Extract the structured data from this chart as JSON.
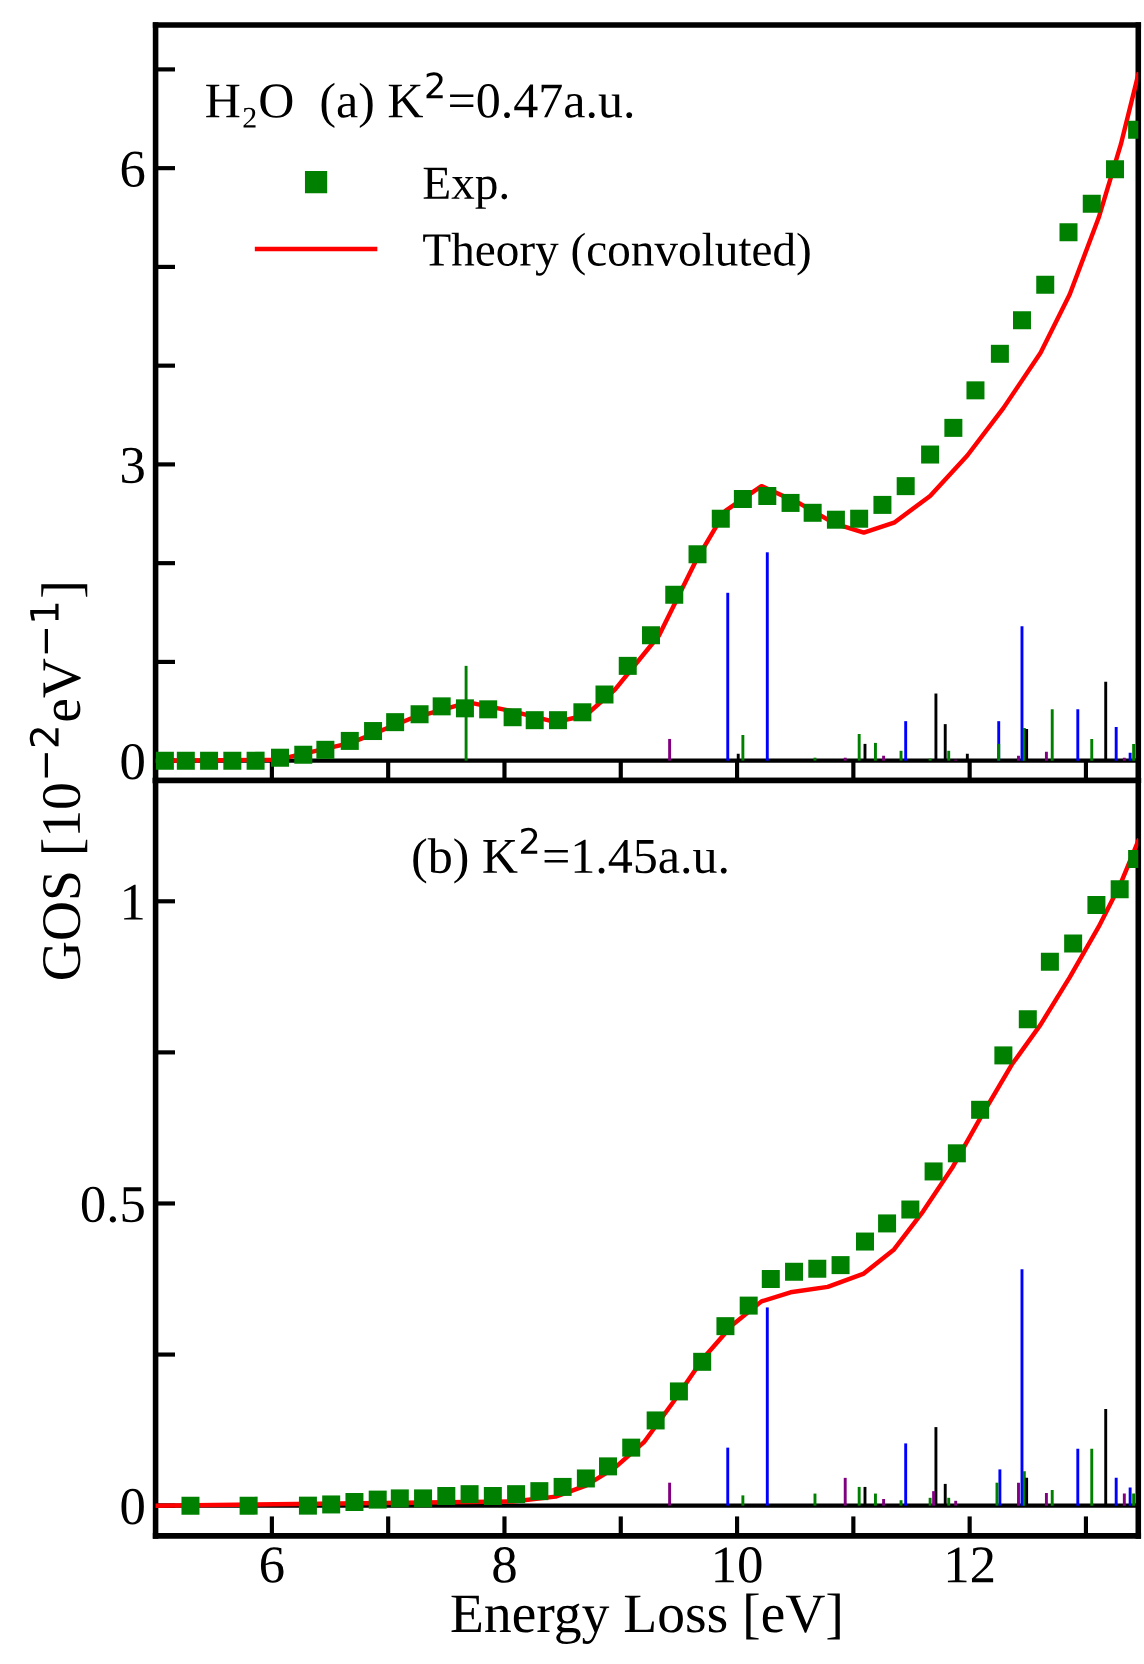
{
  "chart_data": [
    {
      "type": "scatter",
      "ylabel": "GOS [10$^{−2}$eV$^{−1}$]",
      "annotations": [
        "H₂O  (a) K$^{2}$=0.47a.u."
      ],
      "legend": "top left",
      "tick_labels": "y",
      "xlim": [
        5,
        13.45
      ],
      "ylim": [
        -0.2,
        7.45
      ],
      "xticks": [
        6,
        {
          "value": 7,
          "label": null
        },
        8,
        {
          "value": 9,
          "label": null
        },
        10,
        {
          "value": 11,
          "label": null
        },
        12,
        {
          "value": 13,
          "label": null
        }
      ],
      "yticks": [
        0,
        {
          "value": 1,
          "label": null
        },
        {
          "value": 2,
          "label": null
        },
        3,
        {
          "value": 4,
          "label": null
        },
        {
          "value": 5,
          "label": null
        },
        6,
        {
          "value": 7,
          "label": null
        }
      ],
      "series": [
        {
          "type": "bar",
          "color": "#0000ff",
          "x": [
            9.92,
            10.26,
            11.45,
            12.25,
            12.45,
            12.93,
            13.26,
            13.38
          ],
          "values": [
            1.7,
            2.11,
            0.4,
            0.4,
            1.36,
            0.52,
            0.34,
            0.08
          ]
        },
        {
          "type": "bar",
          "color": "#008000",
          "x": [
            7.67,
            10.05,
            10.67,
            11.05,
            11.19,
            11.41,
            11.66,
            11.82,
            12.25,
            12.47,
            12.71,
            13.05,
            13.41
          ],
          "values": [
            0.96,
            0.26,
            0.03,
            0.27,
            0.18,
            0.1,
            0.02,
            0.1,
            0.17,
            0.33,
            0.52,
            0.22,
            0.17
          ]
        },
        {
          "type": "bar",
          "color": "#000000",
          "x": [
            10.01,
            11.1,
            11.71,
            11.79,
            11.98,
            12.49,
            13.17
          ],
          "values": [
            0.07,
            0.17,
            0.68,
            0.37,
            0.07,
            0.32,
            0.8
          ]
        },
        {
          "type": "bar",
          "color": "#800080",
          "x": [
            9.42,
            10.93,
            11.26,
            11.88,
            12.42,
            12.66,
            13.33
          ],
          "values": [
            0.22,
            0.03,
            0.05,
            0.01,
            0.05,
            0.09,
            0.03
          ]
        },
        {
          "type": "line",
          "name": "Theory (convoluted)",
          "color": "#ff0000",
          "line_style": "solid",
          "x": [
            5,
            6.05,
            6.68,
            7.18,
            7.69,
            8.07,
            8.44,
            8.7,
            8.95,
            9.33,
            9.64,
            9.9,
            10.21,
            10.53,
            10.84,
            11.09,
            11.35,
            11.66,
            11.98,
            12.29,
            12.61,
            12.86,
            13.11,
            13.3,
            13.45
          ],
          "values": [
            0,
            0.01,
            0.18,
            0.42,
            0.59,
            0.5,
            0.39,
            0.46,
            0.72,
            1.27,
            2.01,
            2.53,
            2.78,
            2.61,
            2.4,
            2.31,
            2.41,
            2.68,
            3.09,
            3.57,
            4.13,
            4.72,
            5.5,
            6.24,
            6.95
          ]
        },
        {
          "name": "Exp.",
          "color": "#008000",
          "marker": "square",
          "x": [
            5.08,
            5.26,
            5.46,
            5.66,
            5.86,
            6.07,
            6.27,
            6.46,
            6.67,
            6.87,
            7.06,
            7.27,
            7.46,
            7.66,
            7.86,
            8.07,
            8.26,
            8.46,
            8.67,
            8.86,
            9.06,
            9.26,
            9.46,
            9.66,
            9.86,
            10.05,
            10.26,
            10.46,
            10.65,
            10.85,
            11.05,
            11.25,
            11.45,
            11.66,
            11.86,
            12.05,
            12.26,
            12.45,
            12.65,
            12.85,
            13.05,
            13.25,
            13.44
          ],
          "values": [
            0,
            0,
            0,
            0,
            0,
            0.03,
            0.06,
            0.11,
            0.2,
            0.3,
            0.39,
            0.47,
            0.55,
            0.53,
            0.52,
            0.44,
            0.41,
            0.41,
            0.49,
            0.67,
            0.96,
            1.27,
            1.68,
            2.09,
            2.45,
            2.65,
            2.68,
            2.61,
            2.51,
            2.44,
            2.45,
            2.59,
            2.78,
            3.1,
            3.37,
            3.75,
            4.12,
            4.46,
            4.82,
            5.35,
            5.64,
            5.99,
            6.39
          ]
        }
      ]
    },
    {
      "type": "scatter",
      "xlabel": "Energy Loss [eV]",
      "annotations": [
        "(b) K$^{2}$=1.45a.u."
      ],
      "xlim": [
        5,
        13.45
      ],
      "ylim": [
        -0.05,
        1.2
      ],
      "xticks": [
        6,
        {
          "value": 7,
          "label": null
        },
        8,
        {
          "value": 9,
          "label": null
        },
        10,
        {
          "value": 11,
          "label": null
        },
        12,
        {
          "value": 13,
          "label": null
        }
      ],
      "yticks": [
        0,
        {
          "value": 0.25,
          "label": null
        },
        0.5,
        {
          "value": 0.75,
          "label": null
        },
        1
      ],
      "series": [
        {
          "type": "bar",
          "color": "#0000ff",
          "x": [
            9.92,
            10.26,
            11.45,
            12.26,
            12.45,
            12.93,
            13.26,
            13.38
          ],
          "values": [
            0.096,
            0.328,
            0.103,
            0.06,
            0.391,
            0.094,
            0.046,
            0.03
          ]
        },
        {
          "type": "bar",
          "color": "#008000",
          "x": [
            10.05,
            10.67,
            11.05,
            11.19,
            11.41,
            11.66,
            11.82,
            12.235,
            12.47,
            12.71,
            13.05,
            13.41
          ],
          "values": [
            0.017,
            0.02,
            0.031,
            0.02,
            0.009,
            0.013,
            0.013,
            0.038,
            0.057,
            0.026,
            0.094,
            0.02
          ]
        },
        {
          "type": "bar",
          "color": "#000000",
          "x": [
            11.1,
            11.71,
            11.79,
            12.49,
            13.17
          ],
          "values": [
            0.031,
            0.13,
            0.036,
            0.046,
            0.16
          ]
        },
        {
          "type": "bar",
          "color": "#800080",
          "x": [
            9.42,
            10.93,
            11.26,
            11.69,
            11.88,
            12.42,
            12.66,
            13.33
          ],
          "values": [
            0.038,
            0.046,
            0.011,
            0.024,
            0.008,
            0.038,
            0.021,
            0.02
          ]
        },
        {
          "type": "line",
          "color": "#ff0000",
          "line_style": "solid",
          "x": [
            5,
            8.07,
            8.44,
            8.7,
            8.95,
            9.2,
            9.45,
            9.71,
            9.96,
            10.21,
            10.46,
            10.78,
            11.09,
            11.35,
            11.6,
            11.85,
            12.1,
            12.36,
            12.61,
            12.86,
            13.11,
            13.3,
            13.45
          ],
          "values": [
            0,
            0.007,
            0.015,
            0.033,
            0.063,
            0.105,
            0.171,
            0.244,
            0.299,
            0.338,
            0.353,
            0.362,
            0.384,
            0.424,
            0.487,
            0.559,
            0.644,
            0.729,
            0.796,
            0.874,
            0.958,
            1.03,
            1.1
          ]
        },
        {
          "color": "#008000",
          "marker": "square",
          "x": [
            5.3,
            5.8,
            6.31,
            6.51,
            6.71,
            6.91,
            7.1,
            7.3,
            7.5,
            7.7,
            7.9,
            8.1,
            8.3,
            8.5,
            8.7,
            8.89,
            9.09,
            9.3,
            9.5,
            9.7,
            9.9,
            10.1,
            10.29,
            10.49,
            10.69,
            10.89,
            11.1,
            11.29,
            11.49,
            11.69,
            11.89,
            12.09,
            12.29,
            12.5,
            12.69,
            12.89,
            13.09,
            13.29,
            13.44
          ],
          "values": [
            0,
            0,
            0,
            0.002,
            0.006,
            0.01,
            0.012,
            0.012,
            0.016,
            0.019,
            0.016,
            0.019,
            0.024,
            0.031,
            0.045,
            0.065,
            0.096,
            0.141,
            0.189,
            0.238,
            0.297,
            0.331,
            0.375,
            0.387,
            0.392,
            0.398,
            0.437,
            0.467,
            0.49,
            0.553,
            0.583,
            0.655,
            0.745,
            0.805,
            0.9,
            0.93,
            0.994,
            1.02,
            1.07
          ]
        }
      ]
    }
  ]
}
